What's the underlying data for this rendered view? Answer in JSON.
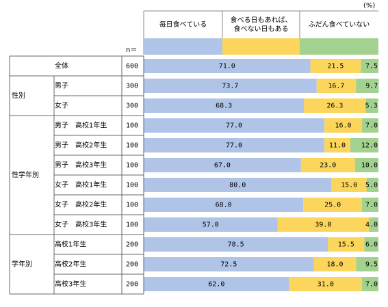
{
  "chart_data": {
    "type": "bar",
    "stacked": true,
    "orientation": "horizontal",
    "unit_label": "(%)",
    "n_header": "n＝",
    "xlim": [
      0,
      100
    ],
    "series": [
      {
        "name": "毎日食べている",
        "color": "#b0c4e8"
      },
      {
        "name": "食べる日もあれば、食べない日もある",
        "color": "#fcd65c"
      },
      {
        "name": "ふだん食べていない",
        "color": "#a3d190"
      }
    ],
    "legend_lines": [
      [
        "毎日食べている"
      ],
      [
        "食べる日もあれば、",
        "食べない日もある"
      ],
      [
        "ふだん食べていない"
      ]
    ],
    "groups": [
      {
        "label": "",
        "rows": [
          0
        ]
      },
      {
        "label": "性別",
        "rows": [
          1,
          2
        ]
      },
      {
        "label": "性学年別",
        "rows": [
          3,
          4,
          5,
          6,
          7,
          8
        ]
      },
      {
        "label": "学年別",
        "rows": [
          9,
          10,
          11
        ]
      }
    ],
    "rows": [
      {
        "label": "全体",
        "n": "600",
        "values": [
          71.0,
          21.5,
          7.5
        ],
        "labels": [
          "71.0",
          "21.5",
          "7.5"
        ]
      },
      {
        "label": "男子",
        "n": "300",
        "values": [
          73.7,
          16.7,
          9.7
        ],
        "labels": [
          "73.7",
          "16.7",
          "9.7"
        ]
      },
      {
        "label": "女子",
        "n": "300",
        "values": [
          68.3,
          26.3,
          5.3
        ],
        "labels": [
          "68.3",
          "26.3",
          "5.3"
        ]
      },
      {
        "label": "男子　高校1年生",
        "n": "100",
        "values": [
          77.0,
          16.0,
          7.0
        ],
        "labels": [
          "77.0",
          "16.0",
          "7.0"
        ]
      },
      {
        "label": "男子　高校2年生",
        "n": "100",
        "values": [
          77.0,
          11.0,
          12.0
        ],
        "labels": [
          "77.0",
          "11.0",
          "12.0"
        ]
      },
      {
        "label": "男子　高校3年生",
        "n": "100",
        "values": [
          67.0,
          23.0,
          10.0
        ],
        "labels": [
          "67.0",
          "23.0",
          "10.0"
        ]
      },
      {
        "label": "女子　高校1年生",
        "n": "100",
        "values": [
          80.0,
          15.0,
          5.0
        ],
        "labels": [
          "80.0",
          "15.0",
          "5.0"
        ]
      },
      {
        "label": "女子　高校2年生",
        "n": "100",
        "values": [
          68.0,
          25.0,
          7.0
        ],
        "labels": [
          "68.0",
          "25.0",
          "7.0"
        ]
      },
      {
        "label": "女子　高校3年生",
        "n": "100",
        "values": [
          57.0,
          39.0,
          4.0
        ],
        "labels": [
          "57.0",
          "39.0",
          "4.0"
        ]
      },
      {
        "label": "高校1年生",
        "n": "200",
        "values": [
          78.5,
          15.5,
          6.0
        ],
        "labels": [
          "78.5",
          "15.5",
          "6.0"
        ]
      },
      {
        "label": "高校2年生",
        "n": "200",
        "values": [
          72.5,
          18.0,
          9.5
        ],
        "labels": [
          "72.5",
          "18.0",
          "9.5"
        ]
      },
      {
        "label": "高校3年生",
        "n": "200",
        "values": [
          62.0,
          31.0,
          7.0
        ],
        "labels": [
          "62.0",
          "31.0",
          "7.0"
        ]
      }
    ]
  }
}
